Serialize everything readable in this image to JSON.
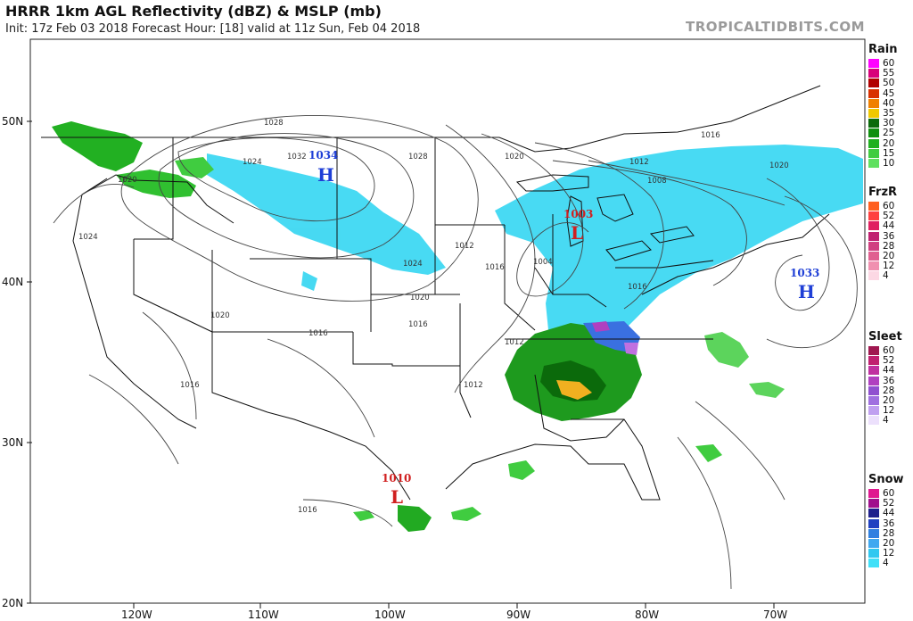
{
  "header": {
    "title": "HRRR 1km AGL Reflectivity (dBZ) & MSLP (mb)",
    "subtitle": "Init: 17z Feb 03 2018   Forecast Hour: [18]   valid at 11z Sun, Feb 04 2018",
    "brand": "TROPICALTIDBITS.COM"
  },
  "axes": {
    "lat_labels": [
      "50N",
      "40N",
      "30N",
      "20N"
    ],
    "lon_labels": [
      "120W",
      "110W",
      "100W",
      "90W",
      "80W",
      "70W"
    ]
  },
  "pressure_centers": [
    {
      "kind": "H",
      "value": "1034",
      "color": "#1f3fd6"
    },
    {
      "kind": "L",
      "value": "1003",
      "color": "#d02020"
    },
    {
      "kind": "H",
      "value": "1033",
      "color": "#1f3fd6"
    },
    {
      "kind": "L",
      "value": "1010",
      "color": "#d02020"
    }
  ],
  "isobar_labels": [
    "1028",
    "1024",
    "1032",
    "1028",
    "1020",
    "1024",
    "1020",
    "1016",
    "1012",
    "1016",
    "1012",
    "1008",
    "1020",
    "1024",
    "1004",
    "1016",
    "1020",
    "1016",
    "1020",
    "1016",
    "1012",
    "1012",
    "1016",
    "1016"
  ],
  "legend": {
    "rain": {
      "title": "Rain",
      "labels": [
        "60",
        "55",
        "50",
        "45",
        "40",
        "35",
        "30",
        "25",
        "20",
        "15",
        "10"
      ],
      "colors": [
        "#ff00ff",
        "#d8007a",
        "#b00000",
        "#d83000",
        "#f08000",
        "#f0c800",
        "#0a6a0a",
        "#109010",
        "#20b020",
        "#40cc40",
        "#60e060"
      ]
    },
    "frzr": {
      "title": "FrzR",
      "labels": [
        "60",
        "52",
        "44",
        "36",
        "28",
        "20",
        "12",
        "4"
      ],
      "colors": [
        "#ff6020",
        "#ff4040",
        "#e02060",
        "#c02070",
        "#d04080",
        "#e06090",
        "#f090b0",
        "#fcd8e4"
      ]
    },
    "sleet": {
      "title": "Sleet",
      "labels": [
        "60",
        "52",
        "44",
        "36",
        "28",
        "20",
        "12",
        "4"
      ],
      "colors": [
        "#a01850",
        "#c02070",
        "#c030a0",
        "#b040c0",
        "#9050d0",
        "#a070e0",
        "#c0a0f0",
        "#ece0fc"
      ]
    },
    "snow": {
      "title": "Snow",
      "labels": [
        "60",
        "52",
        "44",
        "36",
        "28",
        "20",
        "12",
        "4"
      ],
      "colors": [
        "#e01890",
        "#a0108c",
        "#20208c",
        "#2040c0",
        "#3080e0",
        "#40a8f0",
        "#30c8f0",
        "#40e0f8"
      ]
    }
  }
}
